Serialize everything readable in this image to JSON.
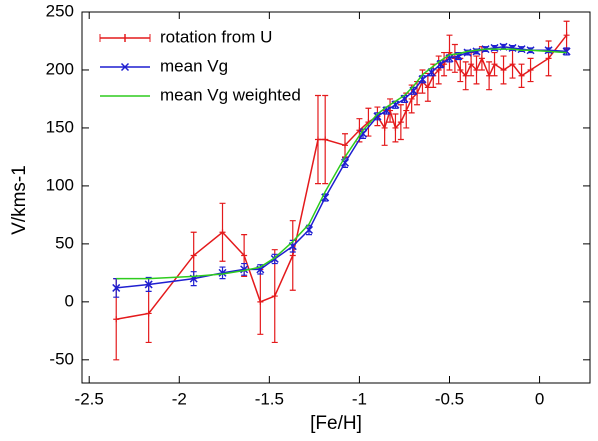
{
  "chart_data": {
    "type": "errorline",
    "xlabel": "[Fe/H]",
    "ylabel": "V/kms-1",
    "xlim": [
      -2.54,
      0.28
    ],
    "ylim": [
      -70,
      250
    ],
    "xticks": [
      -2.5,
      -2,
      -1.5,
      -1,
      -0.5,
      0
    ],
    "yticks": [
      -50,
      0,
      50,
      100,
      150,
      200,
      250
    ],
    "legend": "upper left",
    "series": [
      {
        "name": "rotation from U",
        "color": "#e41a1c",
        "marker": "plus",
        "x": [
          -2.35,
          -2.17,
          -1.92,
          -1.76,
          -1.64,
          -1.55,
          -1.47,
          -1.37,
          -1.23,
          -1.19,
          -1.08,
          -1.0,
          -0.95,
          -0.9,
          -0.86,
          -0.83,
          -0.8,
          -0.77,
          -0.74,
          -0.71,
          -0.68,
          -0.65,
          -0.62,
          -0.59,
          -0.56,
          -0.53,
          -0.5,
          -0.47,
          -0.44,
          -0.41,
          -0.38,
          -0.35,
          -0.32,
          -0.28,
          -0.25,
          -0.2,
          -0.15,
          -0.1,
          -0.05,
          0.05,
          0.15
        ],
        "values": [
          -15,
          -10,
          40,
          60,
          40,
          0,
          5,
          40,
          140,
          140,
          135,
          148,
          155,
          160,
          150,
          165,
          150,
          155,
          165,
          175,
          180,
          190,
          185,
          195,
          200,
          205,
          215,
          210,
          200,
          195,
          205,
          200,
          210,
          195,
          205,
          200,
          205,
          195,
          200,
          210,
          230
        ],
        "errors": [
          35,
          25,
          20,
          25,
          18,
          28,
          40,
          30,
          38,
          38,
          10,
          10,
          12,
          8,
          15,
          10,
          12,
          15,
          15,
          12,
          10,
          10,
          12,
          10,
          12,
          10,
          15,
          12,
          10,
          12,
          10,
          12,
          10,
          12,
          10,
          12,
          12,
          10,
          10,
          15,
          12
        ]
      },
      {
        "name": "mean Vg",
        "color": "#1f1fd0",
        "marker": "cross",
        "x": [
          -2.35,
          -2.17,
          -1.92,
          -1.76,
          -1.64,
          -1.55,
          -1.47,
          -1.37,
          -1.28,
          -1.19,
          -1.08,
          -0.98,
          -0.9,
          -0.85,
          -0.8,
          -0.75,
          -0.7,
          -0.65,
          -0.6,
          -0.55,
          -0.5,
          -0.45,
          -0.4,
          -0.35,
          -0.3,
          -0.25,
          -0.2,
          -0.15,
          -0.1,
          -0.05,
          0.05,
          0.15
        ],
        "values": [
          12,
          15,
          20,
          25,
          28,
          28,
          37,
          48,
          62,
          90,
          120,
          145,
          160,
          165,
          170,
          175,
          182,
          192,
          198,
          205,
          210,
          212,
          215,
          216,
          218,
          219,
          220,
          219,
          218,
          217,
          217,
          216
        ],
        "errors": [
          8,
          6,
          6,
          5,
          5,
          4,
          4,
          5,
          4,
          3,
          4,
          4,
          3,
          3,
          3,
          3,
          3,
          3,
          3,
          3,
          3,
          3,
          2,
          2,
          2,
          2,
          2,
          2,
          2,
          2,
          2,
          3
        ]
      },
      {
        "name": "mean Vg weighted",
        "color": "#2ecc1e",
        "marker": "none",
        "x": [
          -2.35,
          -2.17,
          -1.92,
          -1.76,
          -1.64,
          -1.55,
          -1.47,
          -1.37,
          -1.28,
          -1.19,
          -1.08,
          -0.98,
          -0.9,
          -0.85,
          -0.8,
          -0.75,
          -0.7,
          -0.65,
          -0.6,
          -0.55,
          -0.5,
          -0.45,
          -0.4,
          -0.35,
          -0.3,
          -0.25,
          -0.2,
          -0.15,
          -0.1,
          -0.05,
          0.05,
          0.15
        ],
        "values": [
          20,
          20,
          22,
          24,
          27,
          30,
          38,
          52,
          67,
          95,
          125,
          148,
          162,
          168,
          173,
          178,
          186,
          196,
          202,
          208,
          213,
          214,
          216,
          217,
          218,
          218,
          218,
          218,
          217,
          217,
          216,
          215
        ]
      }
    ]
  }
}
